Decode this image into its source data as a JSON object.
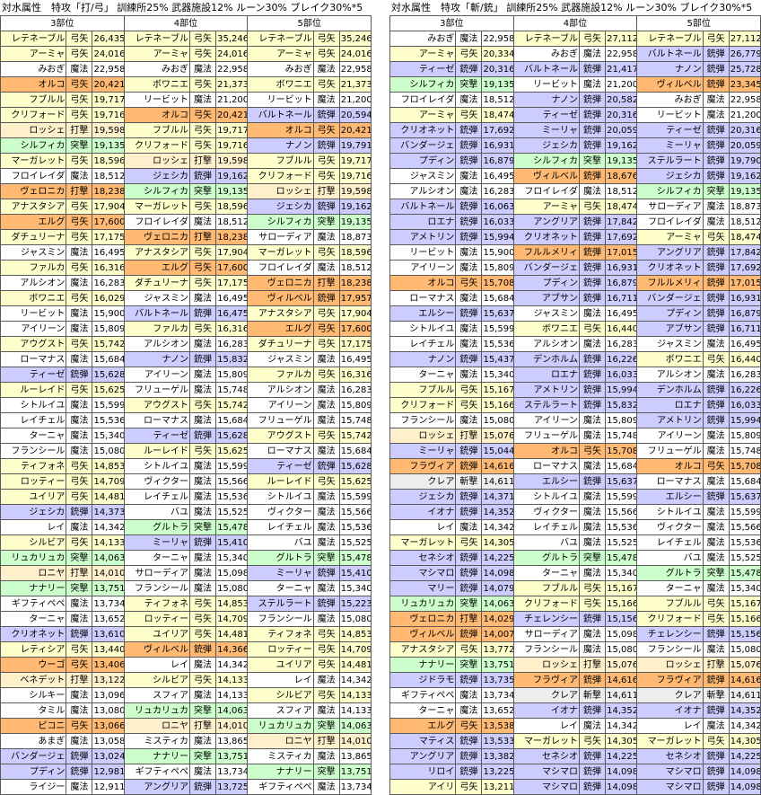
{
  "colors": {
    "魔法": "#ffffff",
    "弓矢": "#ffffcc",
    "突撃": "#ccffcc",
    "銃弾": "#ccccff",
    "打撃": "#fff0cc",
    "斬撃": "#eeeeee"
  },
  "highlights": {
    "オルコ": "#ffb973",
    "エルグ": "#ffb973",
    "ヴィルベル": "#ffb973",
    "フルルメリィ": "#ffb973",
    "フラヴィア": "#ffb973",
    "ヴェロニカ": "#ffb973",
    "ウーゴ": "#ffb973",
    "ピコニ": "#ffb973"
  },
  "left": {
    "title": "対水属性　特攻「打/弓」 訓練所25% 武器施設12% ルーン30% ブレイク30%*5",
    "headers": [
      "3部位",
      "4部位",
      "5部位"
    ],
    "rows": [
      [
        "レテネーブル",
        "弓矢",
        "26,435",
        "レテネーブル",
        "弓矢",
        "35,246",
        "レテネーブル",
        "弓矢",
        "35,246"
      ],
      [
        "アーミャ",
        "弓矢",
        "24,016",
        "アーミャ",
        "弓矢",
        "24,016",
        "アーミャ",
        "弓矢",
        "24,016"
      ],
      [
        "みおぎ",
        "魔法",
        "22,958",
        "みおぎ",
        "魔法",
        "22,958",
        "みおぎ",
        "魔法",
        "22,958"
      ],
      [
        "オルコ",
        "弓矢",
        "20,421",
        "ボワニエ",
        "弓矢",
        "21,373",
        "ボワニエ",
        "弓矢",
        "21,373"
      ],
      [
        "フブルル",
        "弓矢",
        "19,717",
        "リービット",
        "魔法",
        "21,200",
        "リービット",
        "魔法",
        "21,200"
      ],
      [
        "クリフォード",
        "弓矢",
        "19,716",
        "オルコ",
        "弓矢",
        "20,421",
        "バルトネール",
        "銃弾",
        "20,594"
      ],
      [
        "ロッシェ",
        "打撃",
        "19,598",
        "フブルル",
        "弓矢",
        "19,717",
        "オルコ",
        "弓矢",
        "20,421"
      ],
      [
        "シルフィカ",
        "突撃",
        "19,135",
        "クリフォード",
        "弓矢",
        "19,716",
        "ナノン",
        "銃弾",
        "19,791"
      ],
      [
        "マーガレット",
        "弓矢",
        "18,596",
        "ロッシェ",
        "打撃",
        "19,598",
        "フブルル",
        "弓矢",
        "19,717"
      ],
      [
        "フロイレイダ",
        "魔法",
        "18,512",
        "ジェシカ",
        "銃弾",
        "19,162",
        "クリフォード",
        "弓矢",
        "19,716"
      ],
      [
        "ヴェロニカ",
        "打撃",
        "18,238",
        "シルフィカ",
        "突撃",
        "19,135",
        "ロッシェ",
        "打撃",
        "19,598"
      ],
      [
        "アナスタシア",
        "弓矢",
        "17,904",
        "マーガレット",
        "弓矢",
        "18,596",
        "ジェシカ",
        "銃弾",
        "19,162"
      ],
      [
        "エルグ",
        "弓矢",
        "17,600",
        "フロイレイダ",
        "魔法",
        "18,512",
        "シルフィカ",
        "突撃",
        "19,135"
      ],
      [
        "ダチュリーナ",
        "弓矢",
        "17,175",
        "ヴェロニカ",
        "打撃",
        "18,238",
        "サローディア",
        "魔法",
        "18,873"
      ],
      [
        "ジャスミン",
        "魔法",
        "16,495",
        "アナスタシア",
        "弓矢",
        "17,904",
        "マーガレット",
        "弓矢",
        "18,596"
      ],
      [
        "ファルカ",
        "弓矢",
        "16,316",
        "エルグ",
        "弓矢",
        "17,600",
        "フロイレイダ",
        "魔法",
        "18,512"
      ],
      [
        "アルシオン",
        "魔法",
        "16,283",
        "ダチュリーナ",
        "弓矢",
        "17,175",
        "ヴェロニカ",
        "打撃",
        "18,238"
      ],
      [
        "ボワニエ",
        "弓矢",
        "16,029",
        "ジャスミン",
        "魔法",
        "16,495",
        "ヴィルベル",
        "銃弾",
        "17,957"
      ],
      [
        "リービット",
        "魔法",
        "15,900",
        "バルトネール",
        "銃弾",
        "16,475",
        "アナスタシア",
        "弓矢",
        "17,904"
      ],
      [
        "アイリーン",
        "魔法",
        "15,809",
        "ファルカ",
        "弓矢",
        "16,316",
        "エルグ",
        "弓矢",
        "17,600"
      ],
      [
        "アウグスト",
        "弓矢",
        "15,742",
        "アルシオン",
        "魔法",
        "16,283",
        "ダチュリーナ",
        "弓矢",
        "17,175"
      ],
      [
        "ローマナス",
        "魔法",
        "15,684",
        "ナノン",
        "銃弾",
        "15,832",
        "ジャスミン",
        "魔法",
        "16,495"
      ],
      [
        "ティーゼ",
        "銃弾",
        "15,628",
        "アイリーン",
        "魔法",
        "15,809",
        "ファルカ",
        "弓矢",
        "16,316"
      ],
      [
        "ルーレイド",
        "弓矢",
        "15,625",
        "フリューゲル",
        "魔法",
        "15,748",
        "アルシオン",
        "魔法",
        "16,283"
      ],
      [
        "シトルイユ",
        "魔法",
        "15,599",
        "アウグスト",
        "弓矢",
        "15,742",
        "アイリーン",
        "魔法",
        "15,809"
      ],
      [
        "レイチェル",
        "魔法",
        "15,536",
        "ローマナス",
        "魔法",
        "15,684",
        "フリューゲル",
        "魔法",
        "15,748"
      ],
      [
        "ターニャ",
        "魔法",
        "15,340",
        "ティーゼ",
        "銃弾",
        "15,628",
        "アウグスト",
        "弓矢",
        "15,742"
      ],
      [
        "フランシール",
        "魔法",
        "15,080",
        "ルーレイド",
        "弓矢",
        "15,625",
        "ローマナス",
        "魔法",
        "15,684"
      ],
      [
        "ティフォネ",
        "弓矢",
        "14,853",
        "シトルイユ",
        "魔法",
        "15,599",
        "ティーゼ",
        "銃弾",
        "15,628"
      ],
      [
        "ロッティー",
        "弓矢",
        "14,709",
        "ヴィクター",
        "魔法",
        "15,566",
        "ルーレイド",
        "弓矢",
        "15,625"
      ],
      [
        "ユイリア",
        "弓矢",
        "14,481",
        "レイチェル",
        "魔法",
        "15,536",
        "シトルイユ",
        "魔法",
        "15,599"
      ],
      [
        "ジェシカ",
        "銃弾",
        "14,373",
        "バユ",
        "魔法",
        "15,525",
        "ヴィクター",
        "魔法",
        "15,566"
      ],
      [
        "レイ",
        "魔法",
        "14,342",
        "グルトラ",
        "突撃",
        "15,478",
        "レイチェル",
        "魔法",
        "15,536"
      ],
      [
        "シルビア",
        "弓矢",
        "14,133",
        "ミーリャ",
        "銃弾",
        "15,410",
        "バユ",
        "魔法",
        "15,525"
      ],
      [
        "リュカリュカ",
        "突撃",
        "14,063",
        "ターニャ",
        "魔法",
        "15,340",
        "グルトラ",
        "突撃",
        "15,478"
      ],
      [
        "ロニヤ",
        "打撃",
        "14,010",
        "サローディア",
        "魔法",
        "15,098",
        "ミーリャ",
        "銃弾",
        "15,410"
      ],
      [
        "ナナリー",
        "突撃",
        "13,751",
        "フランシール",
        "魔法",
        "15,080",
        "ターニャ",
        "魔法",
        "15,340"
      ],
      [
        "ギフティペペ",
        "魔法",
        "13,734",
        "ティフォネ",
        "弓矢",
        "14,853",
        "ステルラート",
        "銃弾",
        "15,223"
      ],
      [
        "ターニャ",
        "魔法",
        "13,652",
        "ロッティー",
        "弓矢",
        "14,709",
        "フランシール",
        "魔法",
        "15,080"
      ],
      [
        "クリオネット",
        "銃弾",
        "13,610",
        "ユイリア",
        "弓矢",
        "14,481",
        "ティフォネ",
        "弓矢",
        "14,853"
      ],
      [
        "レティシア",
        "弓矢",
        "13,440",
        "ヴィルベル",
        "銃弾",
        "14,366",
        "ロッティー",
        "弓矢",
        "14,709"
      ],
      [
        "ウーゴ",
        "弓矢",
        "13,406",
        "レイ",
        "魔法",
        "14,342",
        "ユイリア",
        "弓矢",
        "14,481"
      ],
      [
        "ベネデット",
        "打撃",
        "13,122",
        "シルビア",
        "弓矢",
        "14,133",
        "レイ",
        "魔法",
        "14,342"
      ],
      [
        "シルキー",
        "魔法",
        "13,096",
        "スフィア",
        "魔法",
        "14,133",
        "シルビア",
        "弓矢",
        "14,133"
      ],
      [
        "タミル",
        "魔法",
        "13,080",
        "リュカリュカ",
        "突撃",
        "14,063",
        "スフィア",
        "魔法",
        "14,133"
      ],
      [
        "ピコニ",
        "弓矢",
        "13,066",
        "ロニヤ",
        "打撃",
        "14,010",
        "リュカリュカ",
        "突撃",
        "14,063"
      ],
      [
        "あまぎ",
        "魔法",
        "13,058",
        "ミスティカ",
        "魔法",
        "13,865",
        "ロニヤ",
        "打撃",
        "14,010"
      ],
      [
        "バンダージェ",
        "銃弾",
        "13,024",
        "ナナリー",
        "突撃",
        "13,751",
        "ミスティカ",
        "魔法",
        "13,865"
      ],
      [
        "プディン",
        "銃弾",
        "12,981",
        "ギフティペペ",
        "魔法",
        "13,734",
        "ナナリー",
        "突撃",
        "13,751"
      ],
      [
        "ライジー",
        "魔法",
        "12,911",
        "アングリア",
        "銃弾",
        "13,725",
        "ギフティペペ",
        "魔法",
        "13,734"
      ]
    ]
  },
  "right": {
    "title": "対水属性　特攻「斬/銃」 訓練所25% 武器施設12% ルーン30% ブレイク30%*5",
    "headers": [
      "3部位",
      "4部位",
      "5部位"
    ],
    "rows": [
      [
        "みおぎ",
        "魔法",
        "22,958",
        "レテネーブル",
        "弓矢",
        "27,112",
        "レテネーブル",
        "弓矢",
        "27,112"
      ],
      [
        "アーミャ",
        "弓矢",
        "20,334",
        "みおぎ",
        "魔法",
        "22,958",
        "バルトネール",
        "銃弾",
        "26,779"
      ],
      [
        "ティーゼ",
        "銃弾",
        "20,316",
        "バルトネール",
        "銃弾",
        "21,417",
        "ナノン",
        "銃弾",
        "25,728"
      ],
      [
        "シルフィカ",
        "突撃",
        "19,135",
        "リービット",
        "魔法",
        "21,200",
        "ヴィルベル",
        "銃弾",
        "23,345"
      ],
      [
        "フロイレイダ",
        "魔法",
        "18,512",
        "ナノン",
        "銃弾",
        "20,582",
        "みおぎ",
        "魔法",
        "22,958"
      ],
      [
        "アーミャ",
        "弓矢",
        "18,474",
        "ティーゼ",
        "銃弾",
        "20,316",
        "リービット",
        "魔法",
        "21,200"
      ],
      [
        "クリオネット",
        "銃弾",
        "17,692",
        "ミーリャ",
        "銃弾",
        "20,059",
        "ティーゼ",
        "銃弾",
        "20,316"
      ],
      [
        "バンダージェ",
        "銃弾",
        "16,931",
        "ジェシカ",
        "銃弾",
        "19,162",
        "ミーリャ",
        "銃弾",
        "20,059"
      ],
      [
        "プディン",
        "銃弾",
        "16,879",
        "シルフィカ",
        "突撃",
        "19,135",
        "ステルラート",
        "銃弾",
        "19,790"
      ],
      [
        "ジャスミン",
        "魔法",
        "16,495",
        "ヴィルベル",
        "銃弾",
        "18,676",
        "ジェシカ",
        "銃弾",
        "19,162"
      ],
      [
        "アルシオン",
        "魔法",
        "16,283",
        "フロイレイダ",
        "魔法",
        "18,512",
        "シルフィカ",
        "突撃",
        "19,135"
      ],
      [
        "バルトネール",
        "銃弾",
        "16,063",
        "アーミャ",
        "弓矢",
        "18,474",
        "サローディア",
        "魔法",
        "18,873"
      ],
      [
        "ロエナ",
        "銃弾",
        "16,033",
        "アングリア",
        "銃弾",
        "17,842",
        "フロイレイダ",
        "魔法",
        "18,512"
      ],
      [
        "アメトリン",
        "銃弾",
        "15,994",
        "クリオネット",
        "銃弾",
        "17,692",
        "アーミャ",
        "弓矢",
        "18,474"
      ],
      [
        "リービット",
        "魔法",
        "15,900",
        "フルルメリィ",
        "銃弾",
        "17,015",
        "アングリア",
        "銃弾",
        "17,842"
      ],
      [
        "アイリーン",
        "魔法",
        "15,809",
        "バンダージェ",
        "銃弾",
        "16,931",
        "クリオネット",
        "銃弾",
        "17,692"
      ],
      [
        "オルコ",
        "弓矢",
        "15,708",
        "プディン",
        "銃弾",
        "16,879",
        "フルルメリィ",
        "銃弾",
        "17,015"
      ],
      [
        "ローマナス",
        "魔法",
        "15,684",
        "アブサン",
        "銃弾",
        "16,711",
        "バンダージェ",
        "銃弾",
        "16,931"
      ],
      [
        "エルシー",
        "銃弾",
        "15,637",
        "ジャスミン",
        "魔法",
        "16,495",
        "プディン",
        "銃弾",
        "16,879"
      ],
      [
        "シトルイユ",
        "魔法",
        "15,599",
        "ボワニエ",
        "弓矢",
        "16,440",
        "アブサン",
        "銃弾",
        "16,711"
      ],
      [
        "レイチェル",
        "魔法",
        "15,536",
        "アルシオン",
        "魔法",
        "16,283",
        "ジャスミン",
        "魔法",
        "16,495"
      ],
      [
        "ナノン",
        "銃弾",
        "15,437",
        "デンホルム",
        "銃弾",
        "16,226",
        "ボワニエ",
        "弓矢",
        "16,440"
      ],
      [
        "ターニャ",
        "魔法",
        "15,340",
        "ロエナ",
        "銃弾",
        "16,033",
        "アルシオン",
        "魔法",
        "16,283"
      ],
      [
        "フブルル",
        "弓矢",
        "15,167",
        "アメトリン",
        "銃弾",
        "15,994",
        "デンホルム",
        "銃弾",
        "16,226"
      ],
      [
        "クリフォード",
        "弓矢",
        "15,166",
        "ステルラート",
        "銃弾",
        "15,832",
        "ロエナ",
        "銃弾",
        "16,033"
      ],
      [
        "フランシール",
        "魔法",
        "15,080",
        "アイリーン",
        "魔法",
        "15,809",
        "アメトリン",
        "銃弾",
        "15,994"
      ],
      [
        "ロッシェ",
        "打撃",
        "15,076",
        "フリューゲル",
        "魔法",
        "15,748",
        "アイリーン",
        "魔法",
        "15,809"
      ],
      [
        "ミーリャ",
        "銃弾",
        "15,044",
        "オルコ",
        "弓矢",
        "15,708",
        "フリューゲル",
        "魔法",
        "15,748"
      ],
      [
        "フラヴィア",
        "銃弾",
        "14,616",
        "ローマナス",
        "魔法",
        "15,684",
        "オルコ",
        "弓矢",
        "15,708"
      ],
      [
        "クレア",
        "斬撃",
        "14,611",
        "エルシー",
        "銃弾",
        "15,637",
        "ローマナス",
        "魔法",
        "15,684"
      ],
      [
        "ジェシカ",
        "銃弾",
        "14,371",
        "シトルイユ",
        "魔法",
        "15,599",
        "エルシー",
        "銃弾",
        "15,637"
      ],
      [
        "イオナ",
        "銃弾",
        "14,352",
        "ヴィクター",
        "魔法",
        "15,566",
        "シトルイユ",
        "魔法",
        "15,599"
      ],
      [
        "レイ",
        "魔法",
        "14,342",
        "レイチェル",
        "魔法",
        "15,536",
        "ヴィクター",
        "魔法",
        "15,566"
      ],
      [
        "マーガレット",
        "弓矢",
        "14,305",
        "バユ",
        "魔法",
        "15,525",
        "レイチェル",
        "魔法",
        "15,536"
      ],
      [
        "セネシオ",
        "銃弾",
        "14,225",
        "グルトラ",
        "突撃",
        "15,478",
        "バユ",
        "魔法",
        "15,525"
      ],
      [
        "マシマロ",
        "銃弾",
        "14,098",
        "ターニャ",
        "魔法",
        "15,340",
        "グルトラ",
        "突撃",
        "15,478"
      ],
      [
        "マリー",
        "銃弾",
        "14,079",
        "フブルル",
        "弓矢",
        "15,167",
        "ターニャ",
        "魔法",
        "15,340"
      ],
      [
        "リュカリュカ",
        "突撃",
        "14,063",
        "クリフォード",
        "弓矢",
        "15,166",
        "フブルル",
        "弓矢",
        "15,167"
      ],
      [
        "ヴェロニカ",
        "打撃",
        "14,029",
        "チェレンシー",
        "銃弾",
        "15,156",
        "クリフォード",
        "弓矢",
        "15,166"
      ],
      [
        "ヴィルベル",
        "銃弾",
        "14,007",
        "サローディア",
        "魔法",
        "15,098",
        "チェレンシー",
        "銃弾",
        "15,156"
      ],
      [
        "アナスタシア",
        "弓矢",
        "13,772",
        "フランシール",
        "魔法",
        "15,080",
        "フランシール",
        "魔法",
        "15,080"
      ],
      [
        "ナナリー",
        "突撃",
        "13,751",
        "ロッシェ",
        "打撃",
        "15,076",
        "ロッシェ",
        "打撃",
        "15,076"
      ],
      [
        "ジドラモ",
        "銃弾",
        "13,735",
        "フラヴィア",
        "銃弾",
        "14,616",
        "フラヴィア",
        "銃弾",
        "14,616"
      ],
      [
        "ギフティペペ",
        "魔法",
        "13,734",
        "クレア",
        "斬撃",
        "14,611",
        "クレア",
        "斬撃",
        "14,611"
      ],
      [
        "ターニャ",
        "魔法",
        "13,652",
        "イオナ",
        "銃弾",
        "14,352",
        "イオナ",
        "銃弾",
        "14,352"
      ],
      [
        "エルグ",
        "弓矢",
        "13,538",
        "レイ",
        "魔法",
        "14,342",
        "レイ",
        "魔法",
        "14,342"
      ],
      [
        "マティス",
        "銃弾",
        "13,533",
        "マーガレット",
        "弓矢",
        "14,305",
        "マーガレット",
        "弓矢",
        "14,305"
      ],
      [
        "アングリア",
        "銃弾",
        "13,382",
        "セネシオ",
        "銃弾",
        "14,225",
        "セネシオ",
        "銃弾",
        "14,225"
      ],
      [
        "リロイ",
        "銃弾",
        "13,225",
        "マシマロ",
        "銃弾",
        "14,098",
        "マシマロ",
        "銃弾",
        "14,098"
      ],
      [
        "アイリ",
        "弓矢",
        "13,211",
        "マシマロ",
        "銃弾",
        "14,098",
        "マシマロ",
        "銃弾",
        "14,098"
      ]
    ]
  }
}
